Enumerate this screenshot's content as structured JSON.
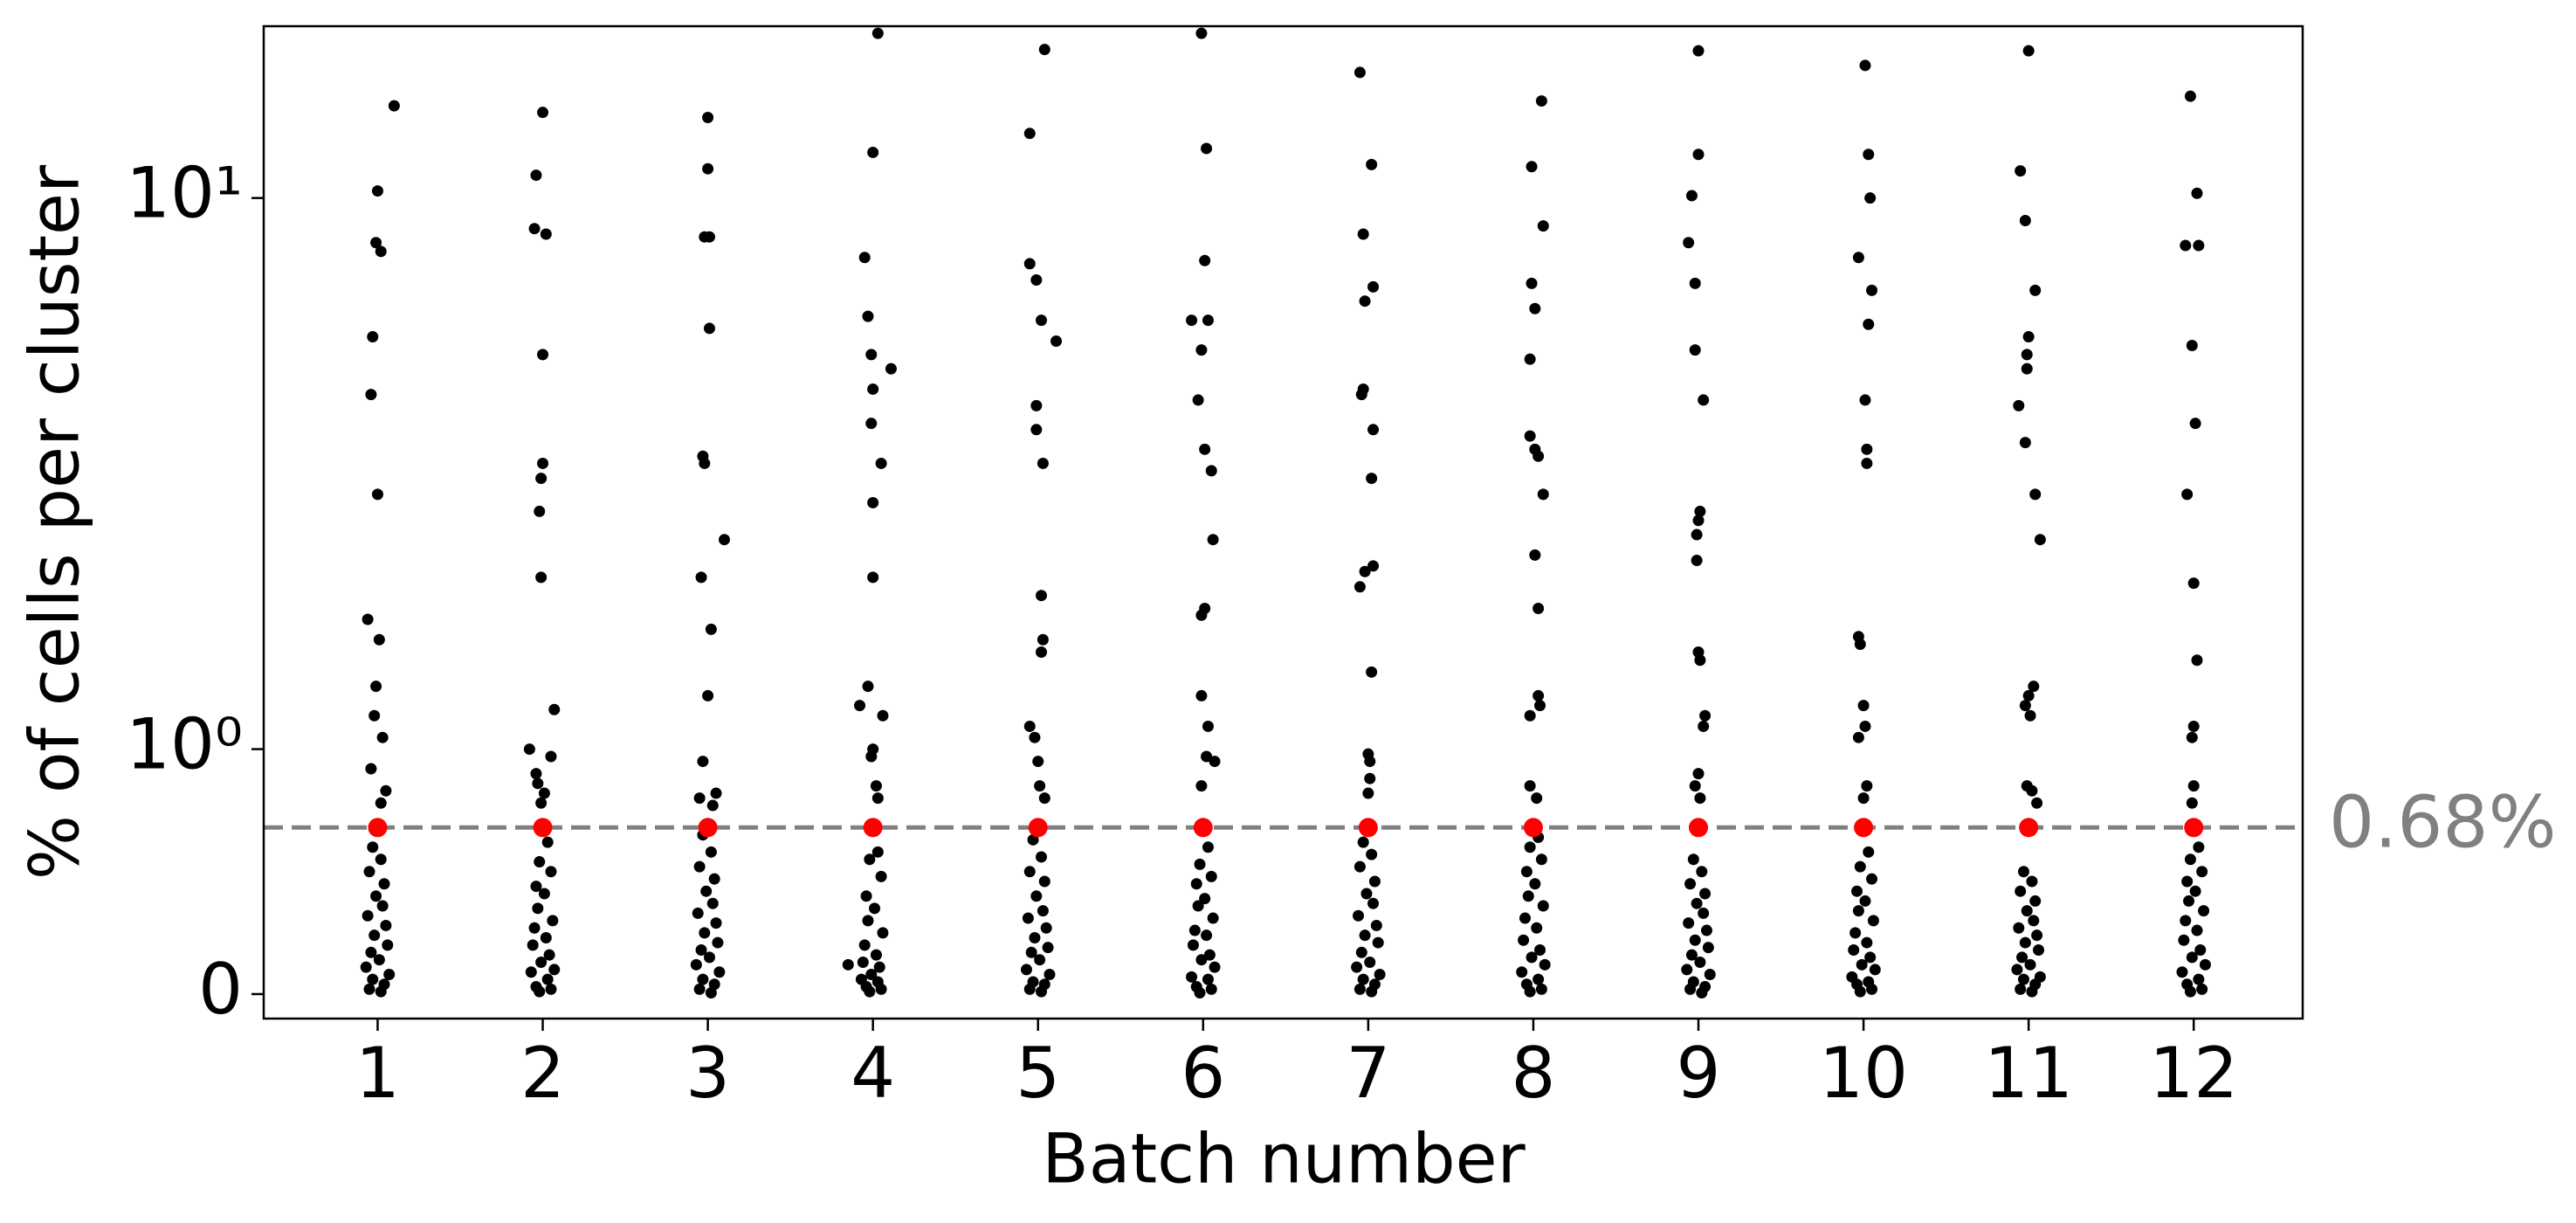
{
  "chart_data": {
    "type": "strip",
    "xlabel": "Batch number",
    "ylabel": "% of cells per cluster",
    "yscale": "symlog",
    "linthresh": 1,
    "linscale": 0.4,
    "xlim": [
      0.31,
      12.66
    ],
    "xticks": [
      1,
      2,
      3,
      4,
      5,
      6,
      7,
      8,
      9,
      10,
      11,
      12
    ],
    "ylim": [
      -0.1,
      20.5
    ],
    "yticks": [
      0,
      {
        "value": 1,
        "label": "10⁰"
      },
      {
        "value": 10,
        "label": "10¹"
      }
    ],
    "points_color": "#000000",
    "points": [
      {
        "x": [
          1.1,
          1.0,
          0.99,
          1.02,
          0.97,
          0.96,
          1.0,
          0.94,
          1.01,
          0.99,
          0.98,
          1.03,
          0.96,
          1.05,
          1.02,
          0.97,
          1.02,
          0.95,
          1.04,
          0.99,
          1.03,
          0.94,
          1.05,
          0.98,
          1.06,
          0.96,
          1.01,
          0.93,
          1.07,
          0.97,
          1.04,
          0.95,
          1.02
        ],
        "values": [
          14.7,
          10.3,
          8.3,
          8.0,
          5.6,
          4.4,
          2.9,
          1.72,
          1.58,
          1.3,
          1.15,
          1.05,
          0.92,
          0.83,
          0.78,
          0.6,
          0.55,
          0.5,
          0.45,
          0.4,
          0.36,
          0.32,
          0.28,
          0.24,
          0.2,
          0.17,
          0.14,
          0.11,
          0.08,
          0.06,
          0.04,
          0.02,
          0.01
        ]
      },
      {
        "x": [
          2.0,
          1.96,
          1.95,
          2.02,
          2.0,
          2.0,
          1.99,
          1.98,
          1.99,
          2.07,
          1.92,
          2.05,
          1.96,
          1.97,
          2.01,
          1.99,
          2.03,
          1.98,
          2.05,
          1.96,
          2.01,
          1.97,
          2.06,
          1.95,
          2.02,
          1.94,
          2.04,
          1.99,
          2.07,
          1.93,
          2.03,
          1.96,
          2.05,
          1.98
        ],
        "values": [
          14.3,
          11.0,
          8.8,
          8.6,
          5.2,
          3.3,
          3.1,
          2.7,
          2.05,
          1.18,
          1.0,
          0.97,
          0.9,
          0.86,
          0.82,
          0.78,
          0.62,
          0.54,
          0.5,
          0.44,
          0.41,
          0.35,
          0.3,
          0.27,
          0.23,
          0.2,
          0.16,
          0.13,
          0.1,
          0.09,
          0.06,
          0.03,
          0.02,
          0.01
        ]
      },
      {
        "x": [
          3.0,
          3.0,
          2.98,
          3.01,
          3.01,
          2.97,
          2.98,
          3.1,
          2.96,
          3.02,
          3.0,
          2.97,
          3.05,
          2.95,
          3.03,
          2.97,
          3.02,
          2.95,
          3.04,
          2.99,
          3.03,
          2.94,
          3.05,
          2.98,
          3.06,
          2.96,
          3.01,
          2.93,
          3.07,
          2.97,
          3.04,
          2.95,
          3.02
        ],
        "values": [
          14.0,
          11.3,
          8.5,
          8.5,
          5.8,
          3.4,
          3.3,
          2.4,
          2.05,
          1.65,
          1.25,
          0.95,
          0.82,
          0.8,
          0.77,
          0.65,
          0.58,
          0.52,
          0.47,
          0.42,
          0.37,
          0.33,
          0.29,
          0.25,
          0.21,
          0.18,
          0.15,
          0.12,
          0.09,
          0.06,
          0.04,
          0.02,
          0.005
        ]
      },
      {
        "x": [
          4.03,
          4.0,
          3.95,
          3.97,
          3.99,
          4.11,
          4.0,
          3.99,
          4.05,
          4.0,
          4.0,
          3.97,
          3.92,
          4.06,
          4.0,
          3.99,
          4.02,
          4.03,
          4.03,
          3.98,
          4.05,
          3.96,
          4.01,
          3.97,
          4.06,
          3.95,
          4.02,
          3.94,
          4.04,
          3.99,
          3.85,
          3.93,
          4.03,
          3.96,
          4.05,
          3.98
        ],
        "values": [
          19.9,
          12.1,
          7.8,
          6.1,
          5.2,
          4.9,
          4.5,
          3.9,
          3.3,
          2.8,
          2.05,
          1.3,
          1.2,
          1.15,
          1.0,
          0.97,
          0.85,
          0.8,
          0.58,
          0.55,
          0.48,
          0.4,
          0.35,
          0.3,
          0.25,
          0.2,
          0.16,
          0.13,
          0.11,
          0.08,
          0.12,
          0.06,
          0.05,
          0.03,
          0.02,
          0.01
        ]
      },
      {
        "x": [
          5.04,
          4.95,
          4.95,
          4.99,
          5.02,
          5.11,
          4.99,
          4.99,
          5.03,
          5.02,
          5.03,
          5.02,
          4.95,
          4.98,
          5.0,
          5.01,
          5.04,
          4.97,
          5.02,
          4.95,
          5.04,
          4.99,
          5.03,
          4.94,
          5.05,
          4.98,
          5.06,
          4.96,
          5.01,
          4.93,
          5.07,
          4.97,
          5.04,
          4.95,
          5.02
        ],
        "values": [
          18.6,
          13.1,
          7.6,
          7.1,
          6.0,
          5.5,
          4.2,
          3.8,
          3.3,
          1.9,
          1.58,
          1.5,
          1.1,
          1.05,
          0.95,
          0.85,
          0.8,
          0.63,
          0.56,
          0.5,
          0.46,
          0.4,
          0.34,
          0.31,
          0.27,
          0.23,
          0.19,
          0.17,
          0.14,
          0.1,
          0.08,
          0.05,
          0.04,
          0.02,
          0.01
        ]
      },
      {
        "x": [
          5.99,
          6.02,
          6.01,
          5.93,
          6.03,
          5.99,
          5.97,
          6.01,
          6.05,
          6.06,
          6.01,
          5.99,
          5.99,
          6.03,
          6.02,
          6.07,
          5.99,
          6.03,
          5.98,
          6.05,
          5.96,
          6.01,
          5.97,
          6.06,
          5.95,
          6.02,
          5.94,
          6.04,
          5.99,
          6.07,
          5.93,
          6.03,
          5.96,
          6.05,
          5.98
        ],
        "values": [
          19.9,
          12.3,
          7.7,
          6.0,
          6.0,
          5.3,
          4.3,
          3.5,
          3.2,
          2.4,
          1.8,
          1.75,
          1.25,
          1.1,
          0.97,
          0.95,
          0.85,
          0.6,
          0.53,
          0.48,
          0.45,
          0.39,
          0.36,
          0.31,
          0.26,
          0.24,
          0.2,
          0.16,
          0.14,
          0.11,
          0.07,
          0.06,
          0.03,
          0.02,
          0.005
        ]
      },
      {
        "x": [
          6.95,
          7.02,
          6.97,
          6.98,
          7.03,
          6.97,
          6.96,
          7.03,
          7.02,
          7.03,
          6.98,
          6.95,
          7.02,
          7.0,
          7.01,
          7.01,
          7.0,
          6.97,
          7.02,
          6.95,
          7.04,
          6.99,
          7.03,
          6.94,
          7.05,
          6.98,
          7.06,
          6.96,
          7.01,
          6.93,
          7.07,
          6.97,
          7.04,
          6.95,
          7.02
        ],
        "values": [
          16.9,
          11.5,
          8.6,
          6.5,
          6.9,
          4.5,
          4.4,
          3.8,
          3.1,
          2.15,
          2.1,
          1.97,
          1.38,
          0.98,
          0.95,
          0.88,
          0.82,
          0.62,
          0.57,
          0.52,
          0.46,
          0.41,
          0.37,
          0.32,
          0.28,
          0.24,
          0.21,
          0.17,
          0.13,
          0.11,
          0.08,
          0.06,
          0.04,
          0.02,
          0.01
        ]
      },
      {
        "x": [
          8.05,
          7.99,
          8.06,
          7.99,
          8.01,
          7.98,
          7.98,
          8.01,
          8.03,
          8.06,
          8.01,
          8.03,
          8.03,
          8.04,
          7.98,
          7.98,
          8.02,
          8.03,
          7.98,
          8.05,
          7.96,
          8.01,
          7.97,
          8.06,
          7.95,
          8.02,
          7.94,
          8.04,
          7.99,
          8.07,
          7.93,
          8.03,
          7.96,
          8.05,
          7.98
        ],
        "values": [
          15.0,
          11.4,
          8.9,
          7.0,
          6.3,
          5.1,
          3.7,
          3.5,
          3.4,
          2.9,
          2.25,
          1.8,
          1.25,
          1.2,
          1.15,
          0.85,
          0.8,
          0.64,
          0.6,
          0.55,
          0.5,
          0.45,
          0.4,
          0.36,
          0.31,
          0.27,
          0.22,
          0.18,
          0.15,
          0.12,
          0.09,
          0.06,
          0.04,
          0.02,
          0.01
        ]
      },
      {
        "x": [
          9.0,
          9.0,
          8.96,
          8.94,
          8.98,
          8.98,
          9.03,
          9.01,
          9.0,
          8.99,
          8.99,
          9.0,
          9.01,
          9.04,
          9.03,
          9.0,
          8.98,
          9.01,
          8.97,
          9.02,
          8.95,
          9.04,
          8.99,
          9.03,
          8.94,
          9.05,
          8.98,
          9.06,
          8.96,
          9.01,
          8.93,
          9.07,
          8.97,
          9.04,
          8.95,
          9.02
        ],
        "values": [
          18.5,
          12.0,
          10.1,
          8.3,
          7.0,
          5.3,
          4.3,
          2.7,
          2.6,
          2.45,
          2.2,
          1.5,
          1.45,
          1.15,
          1.1,
          0.9,
          0.85,
          0.8,
          0.55,
          0.5,
          0.45,
          0.41,
          0.37,
          0.33,
          0.29,
          0.26,
          0.22,
          0.19,
          0.16,
          0.13,
          0.1,
          0.08,
          0.05,
          0.03,
          0.02,
          0.005
        ]
      },
      {
        "x": [
          10.01,
          10.03,
          10.04,
          9.97,
          10.05,
          10.03,
          10.01,
          10.02,
          10.02,
          9.97,
          9.98,
          10.0,
          10.01,
          9.97,
          10.02,
          10.0,
          10.03,
          9.98,
          10.05,
          9.96,
          10.01,
          9.97,
          10.06,
          9.95,
          10.02,
          9.94,
          10.04,
          9.99,
          10.07,
          9.93,
          10.03,
          9.96,
          10.05,
          9.98
        ],
        "values": [
          17.4,
          12.0,
          10.0,
          7.8,
          6.8,
          5.9,
          4.3,
          3.5,
          3.3,
          1.6,
          1.55,
          1.2,
          1.1,
          1.05,
          0.85,
          0.8,
          0.58,
          0.52,
          0.47,
          0.42,
          0.38,
          0.34,
          0.3,
          0.25,
          0.21,
          0.18,
          0.15,
          0.12,
          0.1,
          0.07,
          0.05,
          0.04,
          0.02,
          0.01
        ]
      },
      {
        "x": [
          11.0,
          10.95,
          10.98,
          11.04,
          11.0,
          10.99,
          10.99,
          10.94,
          10.98,
          11.04,
          11.07,
          11.03,
          11.0,
          10.98,
          11.01,
          10.99,
          11.02,
          11.05,
          10.97,
          11.02,
          10.95,
          11.04,
          10.99,
          11.03,
          10.94,
          11.05,
          10.98,
          11.06,
          10.96,
          11.01,
          10.93,
          11.07,
          10.97,
          11.04,
          10.95,
          11.02
        ],
        "values": [
          18.5,
          11.2,
          9.1,
          6.8,
          5.6,
          5.2,
          4.9,
          4.2,
          3.6,
          2.9,
          2.4,
          1.3,
          1.25,
          1.2,
          1.15,
          0.85,
          0.83,
          0.78,
          0.5,
          0.46,
          0.42,
          0.38,
          0.34,
          0.3,
          0.27,
          0.24,
          0.21,
          0.18,
          0.15,
          0.12,
          0.1,
          0.07,
          0.06,
          0.04,
          0.02,
          0.01
        ]
      },
      {
        "x": [
          11.98,
          12.02,
          11.95,
          12.03,
          11.99,
          12.01,
          11.96,
          12.0,
          12.02,
          12.0,
          11.99,
          12.0,
          11.99,
          12.03,
          11.98,
          12.05,
          11.96,
          12.01,
          11.97,
          12.06,
          11.95,
          12.02,
          11.94,
          12.04,
          11.99,
          12.07,
          11.93,
          12.03,
          11.96,
          12.05,
          11.98
        ],
        "values": [
          15.3,
          10.2,
          8.2,
          8.2,
          5.4,
          3.9,
          2.9,
          2.0,
          1.45,
          1.1,
          1.05,
          0.85,
          0.78,
          0.6,
          0.55,
          0.5,
          0.46,
          0.42,
          0.38,
          0.34,
          0.3,
          0.26,
          0.22,
          0.18,
          0.15,
          0.12,
          0.09,
          0.06,
          0.04,
          0.02,
          0.01
        ]
      }
    ],
    "medians": {
      "color": "#ff0000",
      "x": [
        1,
        2,
        3,
        4,
        5,
        6,
        7,
        8,
        9,
        10,
        11,
        12
      ],
      "values": [
        0.68,
        0.68,
        0.68,
        0.68,
        0.68,
        0.68,
        0.68,
        0.68,
        0.68,
        0.68,
        0.68,
        0.68
      ]
    },
    "reference": {
      "value": 0.68,
      "label": "0.68%",
      "color": "#808080"
    }
  }
}
